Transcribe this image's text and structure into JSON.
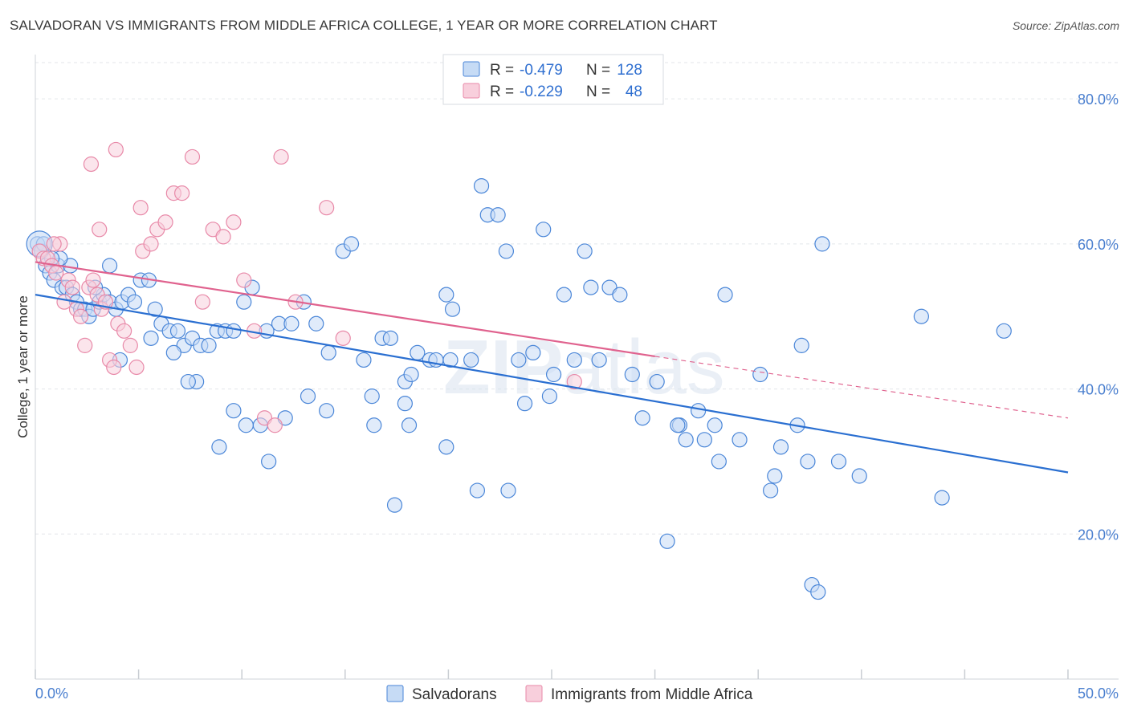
{
  "header": {
    "title": "SALVADORAN VS IMMIGRANTS FROM MIDDLE AFRICA COLLEGE, 1 YEAR OR MORE CORRELATION CHART",
    "source": "Source: ZipAtlas.com"
  },
  "watermark": {
    "part1": "ZIP",
    "part2": "atlas"
  },
  "colors": {
    "blue": "#4a86d8",
    "blue_fill": "#c6dbf5",
    "blue_line": "#2a6fd1",
    "pink": "#e889a8",
    "pink_fill": "#f8cfdc",
    "pink_line": "#e0628e",
    "grid": "#e3e6ea",
    "tick_text": "#4a7fcf"
  },
  "legend": {
    "rows": [
      {
        "r_label": "R = ",
        "r_value": "-0.479",
        "n_label": "N = ",
        "n_value": "128"
      },
      {
        "r_label": "R = ",
        "r_value": "-0.229",
        "n_label": "N = ",
        "n_value": "48"
      }
    ]
  },
  "chart_data": {
    "type": "scatter",
    "xlabel": "",
    "ylabel": "College, 1 year or more",
    "xlim": [
      0,
      50
    ],
    "ylim": [
      0,
      85
    ],
    "x_tick_labels": [
      "0.0%",
      "50.0%"
    ],
    "y_tick_labels": [
      "20.0%",
      "40.0%",
      "60.0%",
      "80.0%"
    ],
    "y_tick_values": [
      20,
      40,
      60,
      80
    ],
    "grid": "horizontal dashed",
    "legend_position": "top-center",
    "series": [
      {
        "name": "Salvadorans",
        "trend": {
          "x0": 0,
          "y0": 53,
          "x1": 50,
          "y1": 28.5
        },
        "points": [
          [
            0.1,
            60
          ],
          [
            0.3,
            59
          ],
          [
            0.5,
            57
          ],
          [
            0.7,
            56
          ],
          [
            0.9,
            55
          ],
          [
            1.1,
            57
          ],
          [
            1.3,
            54
          ],
          [
            1.5,
            54
          ],
          [
            1.8,
            53
          ],
          [
            2,
            52
          ],
          [
            2.2,
            51
          ],
          [
            2.4,
            51
          ],
          [
            2.6,
            50
          ],
          [
            2.8,
            51
          ],
          [
            3.1,
            52
          ],
          [
            3.3,
            53
          ],
          [
            3.6,
            52
          ],
          [
            3.9,
            51
          ],
          [
            4.2,
            52
          ],
          [
            4.5,
            53
          ],
          [
            4.8,
            52
          ],
          [
            5.1,
            55
          ],
          [
            5.5,
            55
          ],
          [
            5.8,
            51
          ],
          [
            6.1,
            49
          ],
          [
            6.5,
            48
          ],
          [
            6.9,
            48
          ],
          [
            7.2,
            46
          ],
          [
            7.6,
            47
          ],
          [
            8.0,
            46
          ],
          [
            8.4,
            46
          ],
          [
            8.8,
            48
          ],
          [
            9.2,
            48
          ],
          [
            9.6,
            48
          ],
          [
            10.1,
            52
          ],
          [
            10.5,
            54
          ],
          [
            11.2,
            48
          ],
          [
            11.8,
            49
          ],
          [
            12.4,
            49
          ],
          [
            13.0,
            52
          ],
          [
            13.6,
            49
          ],
          [
            14.2,
            45
          ],
          [
            14.9,
            59
          ],
          [
            15.3,
            60
          ],
          [
            15.9,
            44
          ],
          [
            16.3,
            39
          ],
          [
            16.8,
            47
          ],
          [
            17.2,
            47
          ],
          [
            17.9,
            38
          ],
          [
            18.5,
            45
          ],
          [
            19.1,
            44
          ],
          [
            19.4,
            44
          ],
          [
            19.9,
            53
          ],
          [
            20.2,
            51
          ],
          [
            21.1,
            44
          ],
          [
            21.6,
            68
          ],
          [
            21.9,
            64
          ],
          [
            22.4,
            64
          ],
          [
            22.8,
            59
          ],
          [
            23.4,
            44
          ],
          [
            23.7,
            38
          ],
          [
            24.1,
            45
          ],
          [
            24.6,
            62
          ],
          [
            24.9,
            39
          ],
          [
            25.1,
            42
          ],
          [
            25.6,
            53
          ],
          [
            26.1,
            44
          ],
          [
            26.6,
            59
          ],
          [
            26.9,
            54
          ],
          [
            27.3,
            44
          ],
          [
            27.8,
            54
          ],
          [
            28.3,
            53
          ],
          [
            28.9,
            42
          ],
          [
            29.4,
            36
          ],
          [
            30.1,
            41
          ],
          [
            30.6,
            19
          ],
          [
            31.2,
            35
          ],
          [
            31.5,
            33
          ],
          [
            32.1,
            37
          ],
          [
            32.4,
            33
          ],
          [
            32.9,
            35
          ],
          [
            33.4,
            53
          ],
          [
            34.1,
            33
          ],
          [
            35.1,
            42
          ],
          [
            35.6,
            26
          ],
          [
            36.9,
            35
          ],
          [
            37.1,
            46
          ],
          [
            38.1,
            60
          ],
          [
            20.1,
            44
          ],
          [
            18.1,
            35
          ],
          [
            16.4,
            35
          ],
          [
            14.1,
            37
          ],
          [
            13.2,
            39
          ],
          [
            12.1,
            36
          ],
          [
            11.3,
            30
          ],
          [
            10.9,
            35
          ],
          [
            10.2,
            35
          ],
          [
            9.6,
            37
          ],
          [
            8.9,
            32
          ],
          [
            7.8,
            41
          ],
          [
            7.4,
            41
          ],
          [
            6.7,
            45
          ],
          [
            5.6,
            47
          ],
          [
            4.1,
            44
          ],
          [
            3.6,
            57
          ],
          [
            2.9,
            54
          ],
          [
            1.7,
            57
          ],
          [
            1.2,
            58
          ],
          [
            0.8,
            58
          ],
          [
            0.4,
            60
          ],
          [
            17.4,
            24
          ],
          [
            17.9,
            41
          ],
          [
            18.2,
            42
          ],
          [
            21.4,
            26
          ],
          [
            19.9,
            32
          ],
          [
            22.9,
            26
          ],
          [
            31.1,
            35
          ],
          [
            36.1,
            32
          ],
          [
            33.1,
            30
          ],
          [
            35.8,
            28
          ],
          [
            38.9,
            30
          ],
          [
            39.9,
            28
          ],
          [
            42.9,
            50
          ],
          [
            43.9,
            25
          ],
          [
            46.9,
            48
          ],
          [
            37.4,
            30
          ],
          [
            37.6,
            13
          ],
          [
            37.9,
            12
          ]
        ]
      },
      {
        "name": "Immigrants from Middle Africa",
        "trend": {
          "x0": 0,
          "y0": 57.5,
          "x1": 30,
          "y1": 44.5
        },
        "trend_dashed": {
          "x0": 30,
          "y0": 44.5,
          "x1": 50,
          "y1": 36
        },
        "points": [
          [
            0.2,
            59
          ],
          [
            0.4,
            58
          ],
          [
            0.6,
            58
          ],
          [
            0.8,
            57
          ],
          [
            1.0,
            56
          ],
          [
            1.2,
            60
          ],
          [
            1.4,
            52
          ],
          [
            1.6,
            55
          ],
          [
            1.8,
            54
          ],
          [
            2.0,
            51
          ],
          [
            2.2,
            50
          ],
          [
            2.4,
            46
          ],
          [
            2.6,
            54
          ],
          [
            2.8,
            55
          ],
          [
            3.0,
            53
          ],
          [
            3.2,
            51
          ],
          [
            3.4,
            52
          ],
          [
            3.6,
            44
          ],
          [
            3.8,
            43
          ],
          [
            4.0,
            49
          ],
          [
            4.3,
            48
          ],
          [
            4.6,
            46
          ],
          [
            4.9,
            43
          ],
          [
            5.2,
            59
          ],
          [
            5.6,
            60
          ],
          [
            5.9,
            62
          ],
          [
            6.3,
            63
          ],
          [
            6.7,
            67
          ],
          [
            7.1,
            67
          ],
          [
            7.6,
            72
          ],
          [
            8.1,
            52
          ],
          [
            8.6,
            62
          ],
          [
            9.1,
            61
          ],
          [
            9.6,
            63
          ],
          [
            10.1,
            55
          ],
          [
            10.6,
            48
          ],
          [
            11.1,
            36
          ],
          [
            11.6,
            35
          ],
          [
            11.9,
            72
          ],
          [
            12.6,
            52
          ],
          [
            14.1,
            65
          ],
          [
            14.9,
            47
          ],
          [
            2.7,
            71
          ],
          [
            3.9,
            73
          ],
          [
            5.1,
            65
          ],
          [
            3.1,
            62
          ],
          [
            26.1,
            41
          ],
          [
            0.9,
            60
          ]
        ]
      }
    ]
  },
  "bottom_legend": {
    "items": [
      {
        "label": "Salvadorans"
      },
      {
        "label": "Immigrants from Middle Africa"
      }
    ]
  }
}
